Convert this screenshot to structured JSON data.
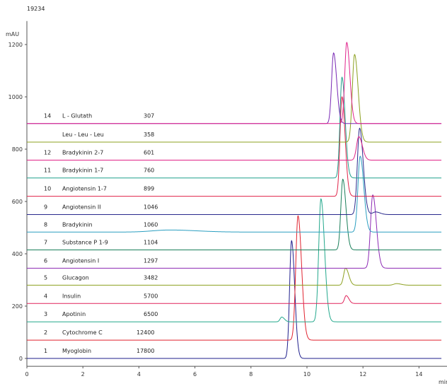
{
  "chart_data": {
    "type": "line",
    "corner_label": "19234",
    "ylabel": "mAU",
    "xlabel": "min",
    "xlim": [
      0,
      14.8
    ],
    "ylim": [
      -30,
      1290
    ],
    "x_ticks": [
      0,
      2,
      4,
      6,
      8,
      10,
      12,
      14
    ],
    "y_ticks": [
      0,
      200,
      400,
      600,
      800,
      1000,
      1200
    ],
    "grid": false,
    "legend": "none",
    "series": [
      {
        "number": "1",
        "name": "Myoglobin",
        "value": "17800",
        "color": "#1f1f8c",
        "baseline": 0,
        "peaks": [
          [
            9.45,
            450,
            0.07
          ]
        ]
      },
      {
        "number": "2",
        "name": "Cytochrome C",
        "value": "12400",
        "color": "#e0232f",
        "baseline": 70,
        "peaks": [
          [
            9.68,
            475,
            0.08
          ]
        ]
      },
      {
        "number": "3",
        "name": "Apotinin",
        "value": "6500",
        "color": "#23a88c",
        "baseline": 140,
        "peaks": [
          [
            10.5,
            470,
            0.08
          ],
          [
            9.1,
            18,
            0.06
          ]
        ]
      },
      {
        "number": "4",
        "name": "Insulin",
        "value": "5700",
        "color": "#e0235a",
        "baseline": 210,
        "peaks": [
          [
            11.4,
            30,
            0.06
          ]
        ]
      },
      {
        "number": "5",
        "name": "Glucagon",
        "value": "3482",
        "color": "#8ca01f",
        "baseline": 280,
        "peaks": [
          [
            11.38,
            65,
            0.07
          ],
          [
            13.2,
            6,
            0.1
          ]
        ]
      },
      {
        "number": "6",
        "name": "Angiotensin I",
        "value": "1297",
        "color": "#8c28b4",
        "baseline": 345,
        "peaks": [
          [
            12.35,
            280,
            0.08
          ]
        ]
      },
      {
        "number": "7",
        "name": "Substance P 1-9",
        "value": "1104",
        "color": "#1a7f5a",
        "baseline": 415,
        "peaks": [
          [
            11.28,
            270,
            0.07
          ]
        ]
      },
      {
        "number": "8",
        "name": "Bradykinin",
        "value": "1060",
        "color": "#2a9ec0",
        "baseline": 483,
        "peaks": [
          [
            11.9,
            290,
            0.08
          ],
          [
            5.1,
            8,
            0.6
          ]
        ]
      },
      {
        "number": "9",
        "name": "Angiotensin II",
        "value": "1046",
        "color": "#28288c",
        "baseline": 550,
        "peaks": [
          [
            11.88,
            330,
            0.08
          ],
          [
            12.45,
            10,
            0.1
          ]
        ]
      },
      {
        "number": "10",
        "name": "Angiotensin 1-7",
        "value": "899",
        "color": "#e02348",
        "baseline": 620,
        "peaks": [
          [
            11.25,
            380,
            0.07
          ]
        ]
      },
      {
        "number": "11",
        "name": "Bradykinin 1-7",
        "value": "760",
        "color": "#1fa08c",
        "baseline": 690,
        "peaks": [
          [
            11.25,
            385,
            0.07
          ]
        ]
      },
      {
        "number": "12",
        "name": "Bradykinin 2-7",
        "value": "601",
        "color": "#e02387",
        "baseline": 758,
        "peaks": [
          [
            11.85,
            90,
            0.08
          ]
        ]
      },
      {
        "number": "",
        "name": "Leu - Leu - Leu",
        "value": "358",
        "color": "#8ca01f",
        "baseline": 827,
        "peaks": [
          [
            11.7,
            335,
            0.08
          ]
        ]
      },
      {
        "number": "14",
        "name": "L - Glutath",
        "value": "307",
        "color": "#7828b4",
        "baseline": 898,
        "peaks": [
          [
            10.95,
            270,
            0.07
          ]
        ]
      },
      {
        "number": "",
        "name": "",
        "value": "",
        "color": "#e0238c",
        "baseline": 898,
        "peaks": [
          [
            11.42,
            310,
            0.07
          ]
        ]
      }
    ]
  }
}
